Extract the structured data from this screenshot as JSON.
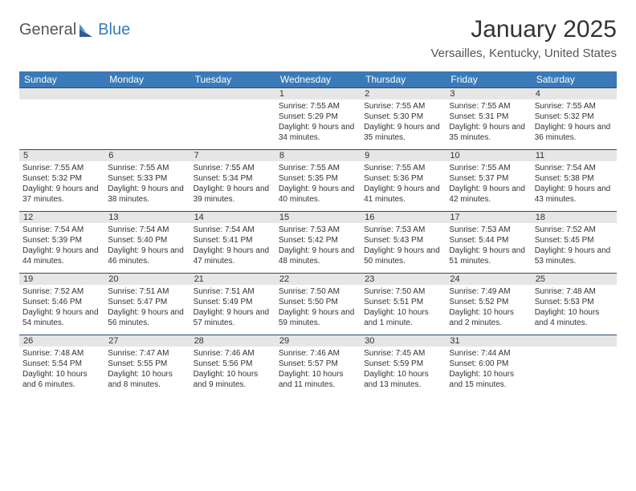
{
  "logo": {
    "word1": "General",
    "word2": "Blue"
  },
  "title": "January 2025",
  "subtitle": "Versailles, Kentucky, United States",
  "colors": {
    "header_bg": "#3a7ab8",
    "header_text": "#ffffff",
    "daynum_bg": "#e6e6e6",
    "daynum_border": "#2c4a6b",
    "body_text": "#333333",
    "logo_blue": "#3a7ab8",
    "logo_gray": "#555555"
  },
  "day_headers": [
    "Sunday",
    "Monday",
    "Tuesday",
    "Wednesday",
    "Thursday",
    "Friday",
    "Saturday"
  ],
  "weeks": [
    [
      {
        "n": "",
        "sr": "",
        "ss": "",
        "dl": ""
      },
      {
        "n": "",
        "sr": "",
        "ss": "",
        "dl": ""
      },
      {
        "n": "",
        "sr": "",
        "ss": "",
        "dl": ""
      },
      {
        "n": "1",
        "sr": "Sunrise: 7:55 AM",
        "ss": "Sunset: 5:29 PM",
        "dl": "Daylight: 9 hours and 34 minutes."
      },
      {
        "n": "2",
        "sr": "Sunrise: 7:55 AM",
        "ss": "Sunset: 5:30 PM",
        "dl": "Daylight: 9 hours and 35 minutes."
      },
      {
        "n": "3",
        "sr": "Sunrise: 7:55 AM",
        "ss": "Sunset: 5:31 PM",
        "dl": "Daylight: 9 hours and 35 minutes."
      },
      {
        "n": "4",
        "sr": "Sunrise: 7:55 AM",
        "ss": "Sunset: 5:32 PM",
        "dl": "Daylight: 9 hours and 36 minutes."
      }
    ],
    [
      {
        "n": "5",
        "sr": "Sunrise: 7:55 AM",
        "ss": "Sunset: 5:32 PM",
        "dl": "Daylight: 9 hours and 37 minutes."
      },
      {
        "n": "6",
        "sr": "Sunrise: 7:55 AM",
        "ss": "Sunset: 5:33 PM",
        "dl": "Daylight: 9 hours and 38 minutes."
      },
      {
        "n": "7",
        "sr": "Sunrise: 7:55 AM",
        "ss": "Sunset: 5:34 PM",
        "dl": "Daylight: 9 hours and 39 minutes."
      },
      {
        "n": "8",
        "sr": "Sunrise: 7:55 AM",
        "ss": "Sunset: 5:35 PM",
        "dl": "Daylight: 9 hours and 40 minutes."
      },
      {
        "n": "9",
        "sr": "Sunrise: 7:55 AM",
        "ss": "Sunset: 5:36 PM",
        "dl": "Daylight: 9 hours and 41 minutes."
      },
      {
        "n": "10",
        "sr": "Sunrise: 7:55 AM",
        "ss": "Sunset: 5:37 PM",
        "dl": "Daylight: 9 hours and 42 minutes."
      },
      {
        "n": "11",
        "sr": "Sunrise: 7:54 AM",
        "ss": "Sunset: 5:38 PM",
        "dl": "Daylight: 9 hours and 43 minutes."
      }
    ],
    [
      {
        "n": "12",
        "sr": "Sunrise: 7:54 AM",
        "ss": "Sunset: 5:39 PM",
        "dl": "Daylight: 9 hours and 44 minutes."
      },
      {
        "n": "13",
        "sr": "Sunrise: 7:54 AM",
        "ss": "Sunset: 5:40 PM",
        "dl": "Daylight: 9 hours and 46 minutes."
      },
      {
        "n": "14",
        "sr": "Sunrise: 7:54 AM",
        "ss": "Sunset: 5:41 PM",
        "dl": "Daylight: 9 hours and 47 minutes."
      },
      {
        "n": "15",
        "sr": "Sunrise: 7:53 AM",
        "ss": "Sunset: 5:42 PM",
        "dl": "Daylight: 9 hours and 48 minutes."
      },
      {
        "n": "16",
        "sr": "Sunrise: 7:53 AM",
        "ss": "Sunset: 5:43 PM",
        "dl": "Daylight: 9 hours and 50 minutes."
      },
      {
        "n": "17",
        "sr": "Sunrise: 7:53 AM",
        "ss": "Sunset: 5:44 PM",
        "dl": "Daylight: 9 hours and 51 minutes."
      },
      {
        "n": "18",
        "sr": "Sunrise: 7:52 AM",
        "ss": "Sunset: 5:45 PM",
        "dl": "Daylight: 9 hours and 53 minutes."
      }
    ],
    [
      {
        "n": "19",
        "sr": "Sunrise: 7:52 AM",
        "ss": "Sunset: 5:46 PM",
        "dl": "Daylight: 9 hours and 54 minutes."
      },
      {
        "n": "20",
        "sr": "Sunrise: 7:51 AM",
        "ss": "Sunset: 5:47 PM",
        "dl": "Daylight: 9 hours and 56 minutes."
      },
      {
        "n": "21",
        "sr": "Sunrise: 7:51 AM",
        "ss": "Sunset: 5:49 PM",
        "dl": "Daylight: 9 hours and 57 minutes."
      },
      {
        "n": "22",
        "sr": "Sunrise: 7:50 AM",
        "ss": "Sunset: 5:50 PM",
        "dl": "Daylight: 9 hours and 59 minutes."
      },
      {
        "n": "23",
        "sr": "Sunrise: 7:50 AM",
        "ss": "Sunset: 5:51 PM",
        "dl": "Daylight: 10 hours and 1 minute."
      },
      {
        "n": "24",
        "sr": "Sunrise: 7:49 AM",
        "ss": "Sunset: 5:52 PM",
        "dl": "Daylight: 10 hours and 2 minutes."
      },
      {
        "n": "25",
        "sr": "Sunrise: 7:48 AM",
        "ss": "Sunset: 5:53 PM",
        "dl": "Daylight: 10 hours and 4 minutes."
      }
    ],
    [
      {
        "n": "26",
        "sr": "Sunrise: 7:48 AM",
        "ss": "Sunset: 5:54 PM",
        "dl": "Daylight: 10 hours and 6 minutes."
      },
      {
        "n": "27",
        "sr": "Sunrise: 7:47 AM",
        "ss": "Sunset: 5:55 PM",
        "dl": "Daylight: 10 hours and 8 minutes."
      },
      {
        "n": "28",
        "sr": "Sunrise: 7:46 AM",
        "ss": "Sunset: 5:56 PM",
        "dl": "Daylight: 10 hours and 9 minutes."
      },
      {
        "n": "29",
        "sr": "Sunrise: 7:46 AM",
        "ss": "Sunset: 5:57 PM",
        "dl": "Daylight: 10 hours and 11 minutes."
      },
      {
        "n": "30",
        "sr": "Sunrise: 7:45 AM",
        "ss": "Sunset: 5:59 PM",
        "dl": "Daylight: 10 hours and 13 minutes."
      },
      {
        "n": "31",
        "sr": "Sunrise: 7:44 AM",
        "ss": "Sunset: 6:00 PM",
        "dl": "Daylight: 10 hours and 15 minutes."
      },
      {
        "n": "",
        "sr": "",
        "ss": "",
        "dl": ""
      }
    ]
  ]
}
